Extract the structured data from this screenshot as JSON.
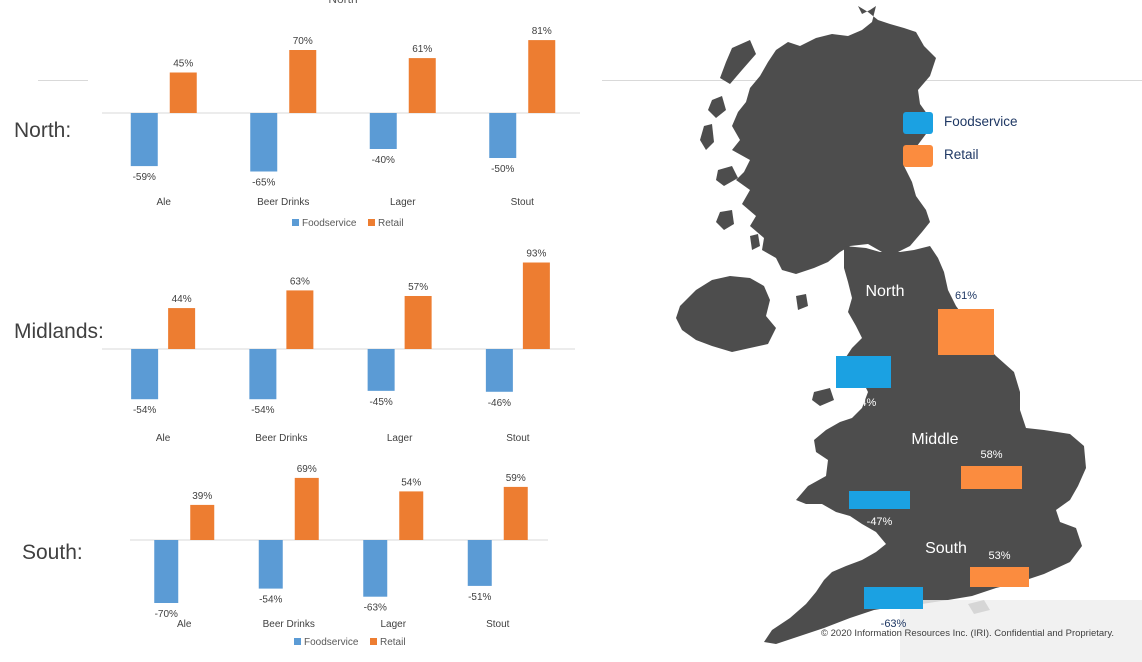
{
  "colors": {
    "foodservice": "#5b9bd5",
    "retail": "#ed7d31",
    "map_land": "#4d4d4d",
    "map_foodservice": "#1ba1e2",
    "map_retail": "#fb8c3f"
  },
  "regions": {
    "north": "North:",
    "midlands": "Midlands:",
    "south": "South:"
  },
  "chart_data": [
    {
      "type": "bar",
      "title": "North",
      "categories": [
        "Ale",
        "Beer Drinks",
        "Lager",
        "Stout"
      ],
      "series": [
        {
          "name": "Foodservice",
          "values": [
            -59,
            -65,
            -40,
            -50
          ]
        },
        {
          "name": "Retail",
          "values": [
            45,
            70,
            61,
            81
          ]
        }
      ],
      "data_labels": {
        "Foodservice": [
          "-59%",
          "-65%",
          "-40%",
          "-50%"
        ],
        "Retail": [
          "45%",
          "70%",
          "61%",
          "81%"
        ]
      },
      "legend": "bottom",
      "grid": false
    },
    {
      "type": "bar",
      "title": "",
      "categories": [
        "Ale",
        "Beer Drinks",
        "Lager",
        "Stout"
      ],
      "series": [
        {
          "name": "Foodservice",
          "values": [
            -54,
            -54,
            -45,
            -46
          ]
        },
        {
          "name": "Retail",
          "values": [
            44,
            63,
            57,
            93
          ]
        }
      ],
      "data_labels": {
        "Foodservice": [
          "-54%",
          "-54%",
          "-45%",
          "-46%"
        ],
        "Retail": [
          "44%",
          "63%",
          "57%",
          "93%"
        ]
      },
      "legend": "none",
      "grid": false
    },
    {
      "type": "bar",
      "title": "",
      "categories": [
        "Ale",
        "Beer Drinks",
        "Lager",
        "Stout"
      ],
      "series": [
        {
          "name": "Foodservice",
          "values": [
            -70,
            -54,
            -63,
            -51
          ]
        },
        {
          "name": "Retail",
          "values": [
            39,
            69,
            54,
            59
          ]
        }
      ],
      "data_labels": {
        "Foodservice": [
          "-70%",
          "-54%",
          "-63%",
          "-51%"
        ],
        "Retail": [
          "39%",
          "69%",
          "54%",
          "59%"
        ]
      },
      "legend": "bottom",
      "grid": false
    },
    {
      "type": "bar",
      "title": "",
      "categories": [
        "North",
        "Middle",
        "South"
      ],
      "series": [
        {
          "name": "Foodservice",
          "values": [
            -44,
            -47,
            -63
          ]
        },
        {
          "name": "Retail",
          "values": [
            61,
            58,
            53
          ]
        }
      ],
      "data_labels": {
        "Foodservice": [
          "-44%",
          "-47%",
          "-63%"
        ],
        "Retail": [
          "61%",
          "58%",
          "53%"
        ]
      },
      "legend": "top-right"
    }
  ],
  "map_legend": {
    "foodservice": "Foodservice",
    "retail": "Retail"
  },
  "footer": {
    "copyright": "© 2020 Information Resources Inc. (IRI). Confidential and Proprietary."
  }
}
